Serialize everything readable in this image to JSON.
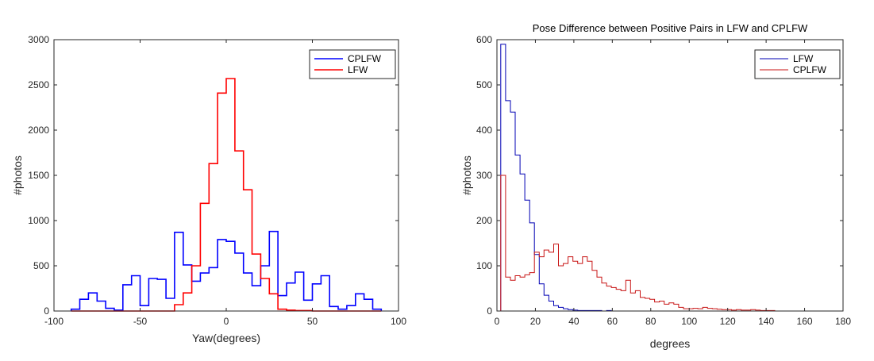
{
  "chart_data": [
    {
      "type": "histogram-step",
      "title": "",
      "xlabel": "Yaw(degrees)",
      "ylabel": "#photos",
      "xlim": [
        -100,
        100
      ],
      "ylim": [
        0,
        3000
      ],
      "xticks": [
        "-100",
        "-50",
        "0",
        "50",
        "100"
      ],
      "yticks": [
        "0",
        "500",
        "1000",
        "1500",
        "2000",
        "2500",
        "3000"
      ],
      "legend_position": "top-right",
      "series": [
        {
          "name": "CPLFW",
          "color": "#0000ff",
          "bin_edges": [
            -90,
            -85,
            -80,
            -75,
            -70,
            -65,
            -60,
            -55,
            -50,
            -45,
            -40,
            -35,
            -30,
            -25,
            -20,
            -15,
            -10,
            -5,
            0,
            5,
            10,
            15,
            20,
            25,
            30,
            35,
            40,
            45,
            50,
            55,
            60,
            65,
            70,
            75,
            80,
            85,
            90
          ],
          "values": [
            20,
            130,
            200,
            110,
            30,
            10,
            290,
            390,
            60,
            360,
            350,
            140,
            870,
            510,
            330,
            420,
            480,
            790,
            770,
            640,
            420,
            280,
            500,
            880,
            170,
            310,
            430,
            120,
            300,
            390,
            50,
            20,
            60,
            190,
            130,
            20
          ]
        },
        {
          "name": "LFW",
          "color": "#ff0000",
          "bin_edges": [
            -90,
            -85,
            -80,
            -75,
            -70,
            -65,
            -60,
            -55,
            -50,
            -45,
            -40,
            -35,
            -30,
            -25,
            -20,
            -15,
            -10,
            -5,
            0,
            5,
            10,
            15,
            20,
            25,
            30,
            35,
            40,
            45,
            50,
            55,
            60,
            65,
            70,
            75,
            80,
            85,
            90
          ],
          "values": [
            0,
            0,
            0,
            0,
            0,
            0,
            0,
            0,
            0,
            0,
            0,
            0,
            70,
            200,
            500,
            1190,
            1630,
            2410,
            2570,
            1770,
            1340,
            630,
            360,
            190,
            20,
            10,
            5,
            5,
            0,
            0,
            0,
            0,
            0,
            0,
            0,
            0
          ]
        }
      ]
    },
    {
      "type": "histogram-step",
      "title": "Pose Difference between Positive Pairs in LFW and CPLFW",
      "xlabel": "degrees",
      "ylabel": "#photos",
      "xlim": [
        0,
        180
      ],
      "ylim": [
        0,
        600
      ],
      "xticks": [
        "0",
        "20",
        "40",
        "60",
        "80",
        "100",
        "120",
        "140",
        "160",
        "180"
      ],
      "yticks": [
        "0",
        "100",
        "200",
        "300",
        "400",
        "500",
        "600"
      ],
      "legend_position": "top-right",
      "series": [
        {
          "name": "LFW",
          "color": "#0000b4",
          "bin_start": 2,
          "bin_width": 2.5,
          "values": [
            590,
            465,
            440,
            345,
            303,
            245,
            195,
            125,
            60,
            35,
            22,
            12,
            8,
            5,
            3,
            2,
            1,
            1,
            1,
            1,
            1,
            0,
            1,
            0,
            0,
            0,
            0,
            0,
            0,
            0,
            0,
            0,
            0,
            0,
            0,
            0,
            0,
            0,
            0,
            0,
            0,
            0,
            0,
            0,
            0,
            0,
            0,
            0,
            0,
            0,
            0,
            0,
            0,
            0,
            0,
            0,
            0,
            0,
            0,
            0,
            0,
            0,
            0,
            0,
            0,
            0,
            0,
            0
          ]
        },
        {
          "name": "CPLFW",
          "color": "#c81414",
          "bin_start": 2,
          "bin_width": 2.5,
          "values": [
            300,
            75,
            68,
            78,
            75,
            80,
            85,
            130,
            120,
            135,
            130,
            148,
            100,
            105,
            120,
            110,
            105,
            120,
            110,
            90,
            75,
            62,
            55,
            52,
            48,
            45,
            68,
            40,
            45,
            30,
            28,
            26,
            20,
            22,
            15,
            18,
            15,
            8,
            5,
            5,
            6,
            5,
            8,
            6,
            5,
            4,
            3,
            3,
            2,
            3,
            2,
            2,
            3,
            2,
            1,
            1,
            1,
            0,
            0,
            0,
            0,
            0,
            0,
            0,
            0,
            0,
            0,
            0
          ]
        }
      ]
    }
  ]
}
